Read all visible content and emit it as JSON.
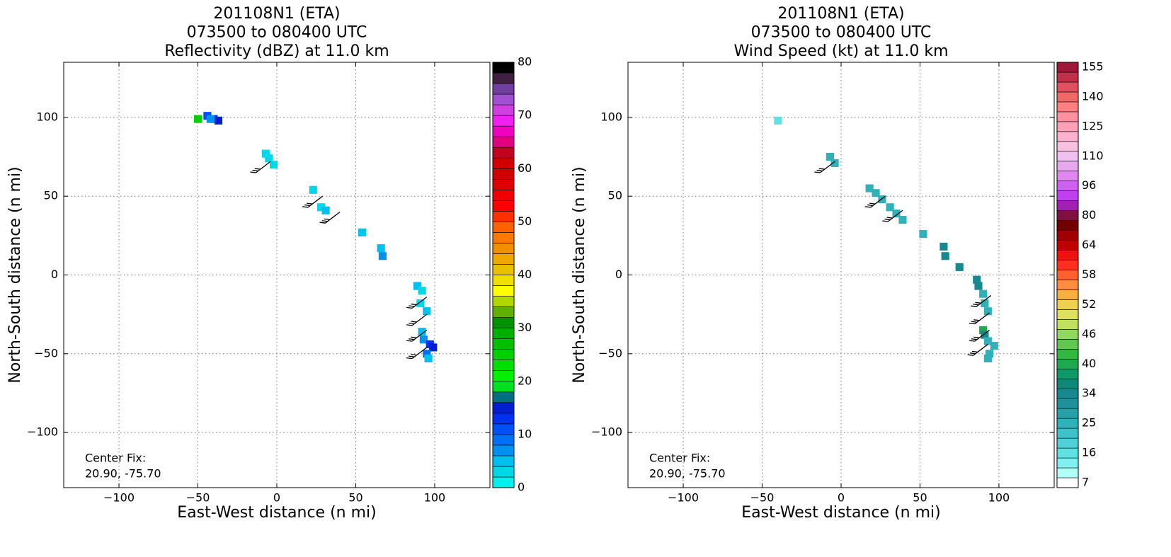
{
  "chart_data": [
    {
      "type": "heatmap",
      "title": [
        "201108N1 (ETA)",
        "073500 to 080400 UTC",
        "Reflectivity (dBZ) at 11.0 km"
      ],
      "xlabel": "East-West distance (n mi)",
      "ylabel": "North-South distance (n mi)",
      "xlim": [
        -135,
        135
      ],
      "ylim": [
        -135,
        135
      ],
      "xticks": [
        {
          "value": -100,
          "label": "−100"
        },
        {
          "value": -50,
          "label": "−50"
        },
        0,
        50,
        100
      ],
      "yticks": [
        {
          "value": -100,
          "label": "−100"
        },
        {
          "value": -50,
          "label": "−50"
        },
        0,
        50,
        100
      ],
      "grid": true,
      "annotation": [
        "Center Fix:",
        "20.90, -75.70"
      ],
      "colorbar": {
        "ticks": [
          0,
          10,
          20,
          30,
          40,
          50,
          60,
          70,
          80
        ],
        "colors": [
          "#00f0f0",
          "#00d8e8",
          "#00c0f0",
          "#0090f0",
          "#0070f8",
          "#0050f8",
          "#0030f0",
          "#0020d0",
          "#007080",
          "#00e020",
          "#00f000",
          "#00e000",
          "#00d000",
          "#00c000",
          "#00b000",
          "#009000",
          "#60b000",
          "#b0d800",
          "#ffff00",
          "#f0e000",
          "#e8c000",
          "#f0a800",
          "#f09000",
          "#ff7800",
          "#ff6000",
          "#ff3000",
          "#ff0000",
          "#f00000",
          "#e00000",
          "#d00000",
          "#d00000",
          "#c00020",
          "#e00080",
          "#f000c0",
          "#f020f0",
          "#d040e0",
          "#a050d0",
          "#7040a0",
          "#402040",
          "#000000"
        ]
      },
      "cells": {
        "x": [
          -50,
          -44,
          -40,
          -37,
          -42,
          -7,
          -5,
          -2,
          23,
          28,
          31,
          54,
          66,
          67,
          89,
          92,
          91,
          95,
          92,
          93,
          97,
          99,
          95,
          96
        ],
        "y": [
          99,
          101,
          99,
          98,
          99,
          77,
          74,
          70,
          54,
          43,
          41,
          27,
          17,
          12,
          -7,
          -10,
          -18,
          -23,
          -36,
          -41,
          -44,
          -46,
          -50,
          -53
        ],
        "values": [
          24,
          10,
          12,
          14,
          6,
          2,
          2,
          2,
          2,
          2,
          4,
          4,
          4,
          6,
          4,
          2,
          2,
          4,
          4,
          6,
          12,
          14,
          8,
          4
        ]
      },
      "barbs": {
        "x": [
          -4,
          29,
          40,
          95,
          95,
          95,
          95
        ],
        "y": [
          72,
          50,
          40,
          -14,
          -25,
          -35,
          -46
        ]
      }
    },
    {
      "type": "heatmap",
      "title": [
        "201108N1 (ETA)",
        "073500 to 080400 UTC",
        "Wind Speed (kt) at 11.0 km"
      ],
      "xlabel": "East-West distance (n mi)",
      "ylabel": "North-South distance (n mi)",
      "xlim": [
        -135,
        135
      ],
      "ylim": [
        -135,
        135
      ],
      "xticks": [
        {
          "value": -100,
          "label": "−100"
        },
        {
          "value": -50,
          "label": "−50"
        },
        0,
        50,
        100
      ],
      "yticks": [
        {
          "value": -100,
          "label": "−100"
        },
        {
          "value": -50,
          "label": "−50"
        },
        0,
        50,
        100
      ],
      "grid": true,
      "annotation": [
        "Center Fix:",
        "20.90, -75.70"
      ],
      "colorbar": {
        "ticks": [
          7,
          16,
          25,
          34,
          40,
          46,
          52,
          58,
          64,
          80,
          96,
          110,
          125,
          140,
          155
        ],
        "colors": [
          "#ffffff",
          "#b0fff8",
          "#80f0f0",
          "#60e0e0",
          "#50d0d8",
          "#40c0c8",
          "#30b0b8",
          "#28a0a8",
          "#20909c",
          "#188890",
          "#108878",
          "#109868",
          "#20a850",
          "#30b840",
          "#60c850",
          "#90d860",
          "#c0e060",
          "#e0e060",
          "#f0d050",
          "#f8b040",
          "#ff8c40",
          "#ff6030",
          "#ff3020",
          "#f01010",
          "#c00000",
          "#a00000",
          "#700000",
          "#801040",
          "#a020b0",
          "#c040f0",
          "#d060f0",
          "#e088f0",
          "#e8a8f0",
          "#f0c0f0",
          "#f8c0e0",
          "#ffb0cc",
          "#ffa0b8",
          "#ff90a0",
          "#ff8080",
          "#f06868",
          "#e05060",
          "#c03048",
          "#a01838"
        ]
      },
      "cells": {
        "x": [
          -40,
          -7,
          -4,
          18,
          22,
          26,
          31,
          35,
          39,
          52,
          65,
          66,
          75,
          86,
          87,
          90,
          91,
          93,
          90,
          91,
          93,
          97,
          94,
          93
        ],
        "y": [
          98,
          75,
          71,
          55,
          52,
          48,
          43,
          39,
          35,
          26,
          18,
          12,
          5,
          -3,
          -7,
          -12,
          -18,
          -23,
          -35,
          -38,
          -42,
          -45,
          -50,
          -53
        ],
        "values": [
          16,
          25,
          25,
          25,
          25,
          25,
          25,
          25,
          25,
          25,
          34,
          34,
          34,
          34,
          34,
          25,
          25,
          25,
          40,
          34,
          25,
          25,
          25,
          25
        ]
      },
      "barbs": {
        "x": [
          -4,
          28,
          39,
          95,
          94,
          94,
          93
        ],
        "y": [
          72,
          50,
          41,
          -13,
          -24,
          -35,
          -44
        ]
      }
    }
  ]
}
